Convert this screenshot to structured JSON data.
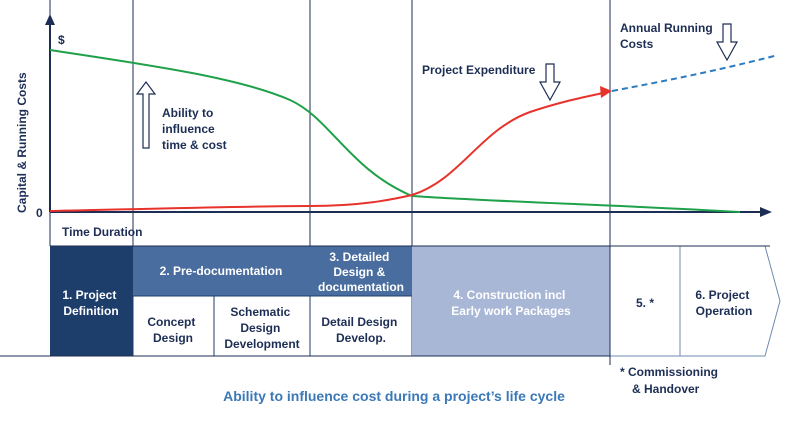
{
  "axes": {
    "y_label": "Capital & Running Costs",
    "y_unit": "$",
    "y_zero": "0",
    "x_label": "Time Duration"
  },
  "curves": {
    "influence_color": "#1fa14a",
    "expenditure_color": "#e8322c",
    "running_color": "#2e7cc0"
  },
  "annotations": {
    "influence": [
      "Ability to",
      "influence",
      "time & cost"
    ],
    "expenditure": "Project Expenditure",
    "running": [
      "Annual Running",
      "Costs"
    ]
  },
  "phases": {
    "p1": [
      "1. Project",
      "Definition"
    ],
    "p2": "2. Pre-documentation",
    "p2a": [
      "Concept",
      "Design"
    ],
    "p2b": [
      "Schematic",
      "Design",
      "Development"
    ],
    "p3": [
      "3. Detailed",
      "Design &",
      "documentation"
    ],
    "p3a": [
      "Detail Design",
      "Develop."
    ],
    "p4": [
      "4. Construction incl",
      "Early work Packages"
    ],
    "p5": "5. *",
    "p6": [
      "6. Project",
      "Operation"
    ]
  },
  "colors": {
    "dark_navy": "#1d3d6b",
    "mid_blue": "#4a6d9f",
    "light_blue": "#a9b7d6",
    "text_navy": "#1d2e55"
  },
  "footnote": [
    "* Commissioning",
    "& Handover"
  ],
  "caption": "Ability to influence cost during a project’s life cycle"
}
